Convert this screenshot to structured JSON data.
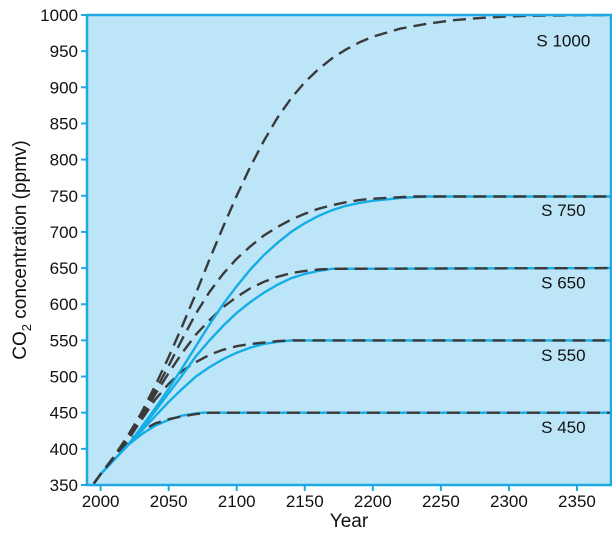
{
  "chart_data": {
    "type": "line",
    "xlabel": "Year",
    "ylabel": {
      "prefix": "CO",
      "subscript": "2",
      "suffix": " concentration (ppmv)"
    },
    "xlim": [
      1990,
      2375
    ],
    "ylim": [
      350,
      1000
    ],
    "xticks": [
      "2000",
      "2050",
      "2100",
      "2150",
      "2200",
      "2250",
      "2300",
      "2350"
    ],
    "yticks": [
      "350",
      "400",
      "450",
      "500",
      "550",
      "600",
      "650",
      "700",
      "750",
      "800",
      "850",
      "900",
      "950",
      "1000"
    ],
    "colors": {
      "background": "#bde5f8",
      "frame": "#1fa9e1",
      "solid": "#14ade6",
      "dashed": "#3a3a3a"
    },
    "series": [
      {
        "name": "S 450",
        "label_pos": [
          2340,
          430
        ],
        "solid": [
          [
            1995,
            352
          ],
          [
            2000,
            365
          ],
          [
            2010,
            385
          ],
          [
            2020,
            405
          ],
          [
            2030,
            420
          ],
          [
            2040,
            432
          ],
          [
            2050,
            440
          ],
          [
            2060,
            446
          ],
          [
            2070,
            449
          ],
          [
            2075,
            450
          ],
          [
            2375,
            450
          ]
        ],
        "dashed": [
          [
            1995,
            352
          ],
          [
            2000,
            365
          ],
          [
            2010,
            388
          ],
          [
            2020,
            410
          ],
          [
            2030,
            425
          ],
          [
            2040,
            435
          ],
          [
            2050,
            441
          ],
          [
            2060,
            445
          ],
          [
            2070,
            448
          ],
          [
            2080,
            450
          ],
          [
            2375,
            450
          ]
        ]
      },
      {
        "name": "S 550",
        "label_pos": [
          2340,
          530
        ],
        "solid": [
          [
            1995,
            352
          ],
          [
            2000,
            365
          ],
          [
            2010,
            385
          ],
          [
            2020,
            405
          ],
          [
            2030,
            425
          ],
          [
            2040,
            445
          ],
          [
            2050,
            465
          ],
          [
            2060,
            483
          ],
          [
            2070,
            500
          ],
          [
            2080,
            513
          ],
          [
            2090,
            524
          ],
          [
            2100,
            533
          ],
          [
            2110,
            540
          ],
          [
            2120,
            545
          ],
          [
            2130,
            548
          ],
          [
            2140,
            550
          ],
          [
            2375,
            550
          ]
        ],
        "dashed": [
          [
            1995,
            352
          ],
          [
            2000,
            365
          ],
          [
            2010,
            388
          ],
          [
            2020,
            412
          ],
          [
            2030,
            440
          ],
          [
            2040,
            468
          ],
          [
            2050,
            490
          ],
          [
            2060,
            508
          ],
          [
            2070,
            520
          ],
          [
            2080,
            530
          ],
          [
            2090,
            537
          ],
          [
            2100,
            542
          ],
          [
            2110,
            545
          ],
          [
            2120,
            547
          ],
          [
            2130,
            549
          ],
          [
            2140,
            550
          ],
          [
            2375,
            550
          ]
        ]
      },
      {
        "name": "S 650",
        "label_pos": [
          2340,
          630
        ],
        "solid": [
          [
            1995,
            352
          ],
          [
            2000,
            365
          ],
          [
            2010,
            385
          ],
          [
            2020,
            405
          ],
          [
            2030,
            428
          ],
          [
            2040,
            452
          ],
          [
            2050,
            477
          ],
          [
            2060,
            502
          ],
          [
            2070,
            528
          ],
          [
            2080,
            550
          ],
          [
            2090,
            570
          ],
          [
            2100,
            588
          ],
          [
            2110,
            603
          ],
          [
            2120,
            616
          ],
          [
            2130,
            627
          ],
          [
            2140,
            636
          ],
          [
            2150,
            642
          ],
          [
            2160,
            646
          ],
          [
            2170,
            649
          ],
          [
            2375,
            650
          ]
        ],
        "dashed": [
          [
            1995,
            352
          ],
          [
            2000,
            365
          ],
          [
            2010,
            388
          ],
          [
            2020,
            414
          ],
          [
            2030,
            443
          ],
          [
            2040,
            475
          ],
          [
            2050,
            505
          ],
          [
            2060,
            533
          ],
          [
            2070,
            558
          ],
          [
            2080,
            578
          ],
          [
            2090,
            596
          ],
          [
            2100,
            610
          ],
          [
            2110,
            622
          ],
          [
            2120,
            631
          ],
          [
            2130,
            638
          ],
          [
            2140,
            643
          ],
          [
            2150,
            646
          ],
          [
            2160,
            648
          ],
          [
            2170,
            649
          ],
          [
            2375,
            650
          ]
        ]
      },
      {
        "name": "S 750",
        "label_pos": [
          2340,
          730
        ],
        "solid": [
          [
            1995,
            352
          ],
          [
            2000,
            365
          ],
          [
            2010,
            385
          ],
          [
            2020,
            405
          ],
          [
            2030,
            430
          ],
          [
            2040,
            456
          ],
          [
            2050,
            483
          ],
          [
            2060,
            512
          ],
          [
            2070,
            542
          ],
          [
            2080,
            572
          ],
          [
            2090,
            600
          ],
          [
            2100,
            625
          ],
          [
            2110,
            648
          ],
          [
            2120,
            668
          ],
          [
            2130,
            685
          ],
          [
            2140,
            700
          ],
          [
            2150,
            712
          ],
          [
            2160,
            722
          ],
          [
            2170,
            730
          ],
          [
            2180,
            736
          ],
          [
            2190,
            740
          ],
          [
            2200,
            743
          ],
          [
            2210,
            745
          ],
          [
            2220,
            747
          ],
          [
            2230,
            748
          ],
          [
            2240,
            749
          ],
          [
            2375,
            749
          ]
        ],
        "dashed": [
          [
            1995,
            352
          ],
          [
            2000,
            365
          ],
          [
            2010,
            388
          ],
          [
            2020,
            415
          ],
          [
            2030,
            446
          ],
          [
            2040,
            480
          ],
          [
            2050,
            515
          ],
          [
            2060,
            552
          ],
          [
            2070,
            587
          ],
          [
            2080,
            617
          ],
          [
            2090,
            642
          ],
          [
            2100,
            663
          ],
          [
            2110,
            680
          ],
          [
            2120,
            695
          ],
          [
            2130,
            707
          ],
          [
            2140,
            717
          ],
          [
            2150,
            725
          ],
          [
            2160,
            732
          ],
          [
            2170,
            737
          ],
          [
            2180,
            741
          ],
          [
            2190,
            744
          ],
          [
            2200,
            746
          ],
          [
            2210,
            747
          ],
          [
            2220,
            748
          ],
          [
            2230,
            749
          ],
          [
            2375,
            749
          ]
        ]
      },
      {
        "name": "S 1000",
        "label_pos": [
          2340,
          965
        ],
        "solid": [],
        "dashed": [
          [
            1995,
            352
          ],
          [
            2000,
            365
          ],
          [
            2010,
            390
          ],
          [
            2020,
            418
          ],
          [
            2030,
            450
          ],
          [
            2040,
            487
          ],
          [
            2050,
            527
          ],
          [
            2060,
            570
          ],
          [
            2070,
            615
          ],
          [
            2080,
            662
          ],
          [
            2090,
            707
          ],
          [
            2100,
            750
          ],
          [
            2110,
            790
          ],
          [
            2120,
            826
          ],
          [
            2130,
            858
          ],
          [
            2140,
            885
          ],
          [
            2150,
            907
          ],
          [
            2160,
            925
          ],
          [
            2170,
            940
          ],
          [
            2180,
            952
          ],
          [
            2190,
            962
          ],
          [
            2200,
            970
          ],
          [
            2220,
            981
          ],
          [
            2240,
            988
          ],
          [
            2260,
            993
          ],
          [
            2280,
            996
          ],
          [
            2300,
            998
          ],
          [
            2320,
            999
          ],
          [
            2375,
            1000
          ]
        ]
      }
    ]
  }
}
